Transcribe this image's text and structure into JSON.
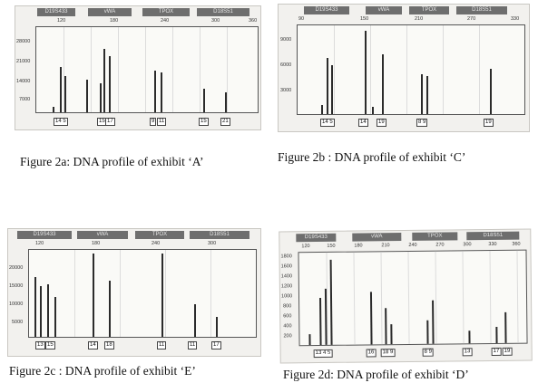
{
  "panels": [
    {
      "id": "a",
      "caption": "Figure 2a: DNA profile of exhibit ‘A’",
      "loci": [
        "D19S433",
        "vWA",
        "TPOX",
        "D18S51"
      ],
      "x_ticks": [
        "120",
        "180",
        "240",
        "300",
        "360"
      ],
      "y_ticks": [
        "28000",
        "21000",
        "14000",
        "7000"
      ],
      "alleles": [
        "14 5",
        "15",
        "17",
        "9",
        "11",
        "15",
        "21"
      ]
    },
    {
      "id": "b",
      "caption": "Figure 2b : DNA profile of exhibit ‘C’",
      "loci": [
        "D19S433",
        "vWA",
        "TPOX",
        "D18S51"
      ],
      "x_ticks": [
        "90",
        "150",
        "210",
        "270",
        "330"
      ],
      "y_ticks": [
        "9000",
        "6000",
        "3000"
      ],
      "alleles": [
        "14 5",
        "14",
        "19",
        "8 9",
        "19"
      ]
    },
    {
      "id": "c",
      "caption": "Figure 2c : DNA profile of exhibit ‘E’",
      "loci": [
        "D19S433",
        "vWA",
        "TPOX",
        "D18S51"
      ],
      "x_ticks": [
        "120",
        "180",
        "240",
        "300"
      ],
      "y_ticks": [
        "20000",
        "15000",
        "10000",
        "5000"
      ],
      "alleles": [
        "13",
        "15",
        "14",
        "18",
        "11",
        "11",
        "17"
      ]
    },
    {
      "id": "d",
      "caption": "Figure 2d: DNA profile of exhibit ‘D’",
      "loci": [
        "D19S433",
        "vWA",
        "TPOX",
        "D18S51"
      ],
      "x_ticks": [
        "120",
        "150",
        "180",
        "210",
        "240",
        "270",
        "300",
        "330",
        "360"
      ],
      "y_ticks": [
        "1800",
        "1600",
        "1400",
        "1200",
        "1000",
        "800",
        "600",
        "400",
        "200"
      ],
      "alleles": [
        "13 4 5",
        "16",
        "18 9",
        "8 9",
        "13",
        "17",
        "19"
      ]
    }
  ]
}
